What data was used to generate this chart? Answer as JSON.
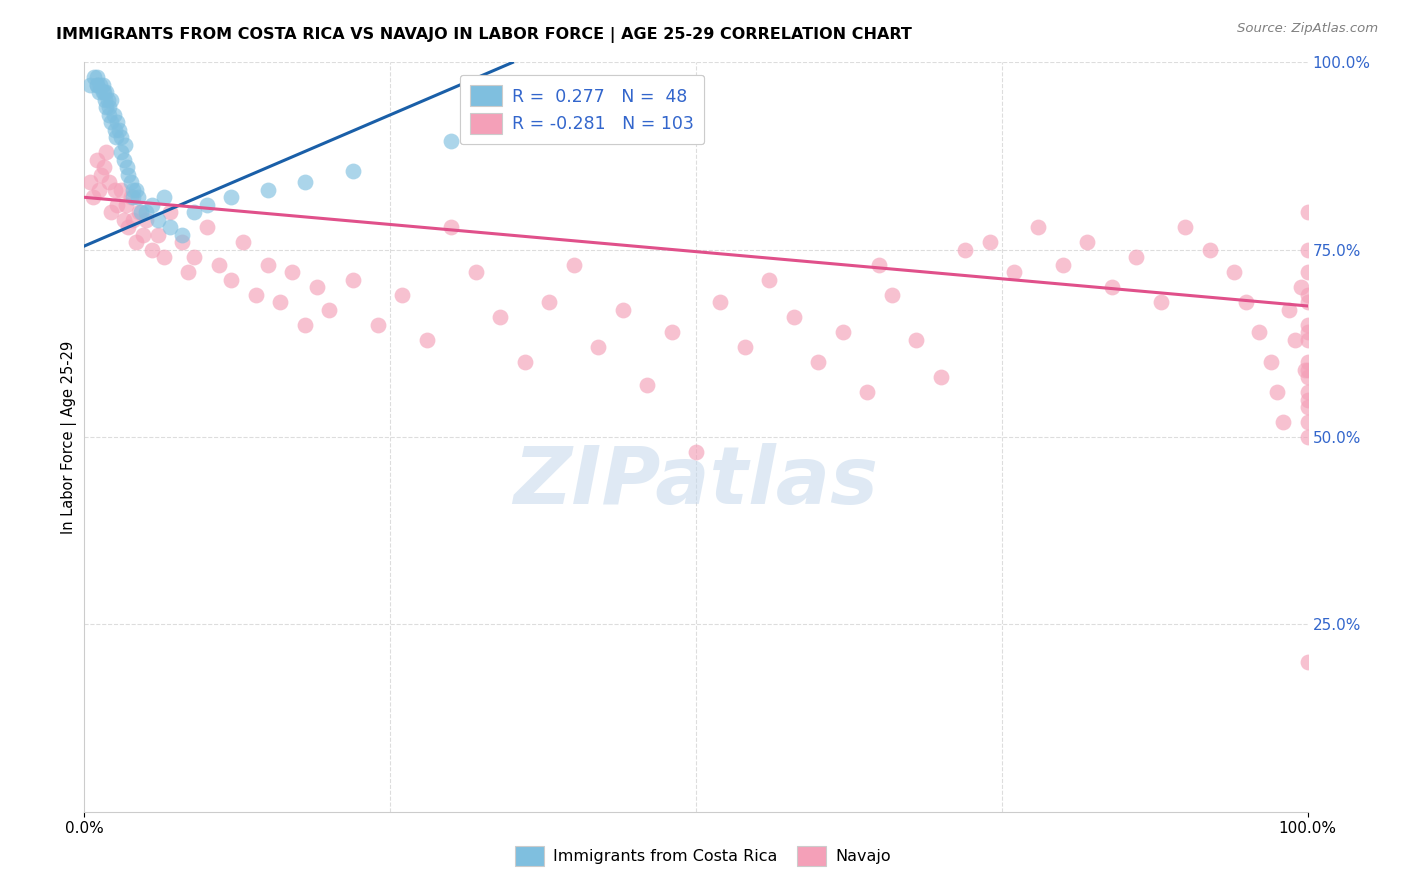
{
  "title": "IMMIGRANTS FROM COSTA RICA VS NAVAJO IN LABOR FORCE | AGE 25-29 CORRELATION CHART",
  "source": "Source: ZipAtlas.com",
  "ylabel": "In Labor Force | Age 25-29",
  "xlim": [
    0,
    1
  ],
  "ylim": [
    0,
    1
  ],
  "x_tick_labels": [
    "0.0%",
    "100.0%"
  ],
  "y_tick_labels_right": [
    "100.0%",
    "75.0%",
    "50.0%",
    "25.0%"
  ],
  "y_tick_vals_right": [
    1.0,
    0.75,
    0.5,
    0.25
  ],
  "legend_r1": "R =  0.277",
  "legend_n1": "N =  48",
  "legend_r2": "R = -0.281",
  "legend_n2": "N = 103",
  "legend_label1": "Immigrants from Costa Rica",
  "legend_label2": "Navajo",
  "color_blue": "#7fbfdf",
  "color_pink": "#f4a0b8",
  "color_line_blue": "#1a5fa8",
  "color_line_pink": "#e0508a",
  "color_right_axis": "#3366cc",
  "watermark_text": "ZIPatlas",
  "blue_scatter_x": [
    0.005,
    0.008,
    0.01,
    0.01,
    0.01,
    0.012,
    0.013,
    0.015,
    0.015,
    0.016,
    0.017,
    0.018,
    0.018,
    0.019,
    0.02,
    0.02,
    0.022,
    0.022,
    0.024,
    0.025,
    0.026,
    0.027,
    0.028,
    0.03,
    0.03,
    0.032,
    0.033,
    0.035,
    0.036,
    0.038,
    0.04,
    0.04,
    0.042,
    0.044,
    0.046,
    0.05,
    0.055,
    0.06,
    0.065,
    0.07,
    0.08,
    0.09,
    0.1,
    0.12,
    0.15,
    0.18,
    0.22,
    0.3
  ],
  "blue_scatter_y": [
    0.97,
    0.98,
    0.97,
    0.98,
    0.97,
    0.96,
    0.97,
    0.97,
    0.96,
    0.96,
    0.95,
    0.94,
    0.96,
    0.95,
    0.93,
    0.94,
    0.92,
    0.95,
    0.93,
    0.91,
    0.9,
    0.92,
    0.91,
    0.88,
    0.9,
    0.87,
    0.89,
    0.86,
    0.85,
    0.84,
    0.83,
    0.82,
    0.83,
    0.82,
    0.8,
    0.8,
    0.81,
    0.79,
    0.82,
    0.78,
    0.77,
    0.8,
    0.81,
    0.82,
    0.83,
    0.84,
    0.855,
    0.895
  ],
  "pink_scatter_x": [
    0.005,
    0.007,
    0.01,
    0.012,
    0.014,
    0.016,
    0.018,
    0.02,
    0.022,
    0.025,
    0.027,
    0.03,
    0.032,
    0.034,
    0.036,
    0.038,
    0.04,
    0.042,
    0.045,
    0.048,
    0.05,
    0.055,
    0.06,
    0.065,
    0.07,
    0.08,
    0.085,
    0.09,
    0.1,
    0.11,
    0.12,
    0.13,
    0.14,
    0.15,
    0.16,
    0.17,
    0.18,
    0.19,
    0.2,
    0.22,
    0.24,
    0.26,
    0.28,
    0.3,
    0.32,
    0.34,
    0.36,
    0.38,
    0.4,
    0.42,
    0.44,
    0.46,
    0.48,
    0.5,
    0.52,
    0.54,
    0.56,
    0.58,
    0.6,
    0.62,
    0.64,
    0.65,
    0.66,
    0.68,
    0.7,
    0.72,
    0.74,
    0.76,
    0.78,
    0.8,
    0.82,
    0.84,
    0.86,
    0.88,
    0.9,
    0.92,
    0.94,
    0.95,
    0.96,
    0.97,
    0.975,
    0.98,
    0.985,
    0.99,
    0.995,
    0.998,
    1.0,
    1.0,
    1.0,
    1.0,
    1.0,
    1.0,
    1.0,
    1.0,
    1.0,
    1.0,
    1.0,
    1.0,
    1.0,
    1.0,
    1.0,
    1.0,
    1.0
  ],
  "pink_scatter_y": [
    0.84,
    0.82,
    0.87,
    0.83,
    0.85,
    0.86,
    0.88,
    0.84,
    0.8,
    0.83,
    0.81,
    0.83,
    0.79,
    0.81,
    0.78,
    0.82,
    0.79,
    0.76,
    0.8,
    0.77,
    0.79,
    0.75,
    0.77,
    0.74,
    0.8,
    0.76,
    0.72,
    0.74,
    0.78,
    0.73,
    0.71,
    0.76,
    0.69,
    0.73,
    0.68,
    0.72,
    0.65,
    0.7,
    0.67,
    0.71,
    0.65,
    0.69,
    0.63,
    0.78,
    0.72,
    0.66,
    0.6,
    0.68,
    0.73,
    0.62,
    0.67,
    0.57,
    0.64,
    0.48,
    0.68,
    0.62,
    0.71,
    0.66,
    0.6,
    0.64,
    0.56,
    0.73,
    0.69,
    0.63,
    0.58,
    0.75,
    0.76,
    0.72,
    0.78,
    0.73,
    0.76,
    0.7,
    0.74,
    0.68,
    0.78,
    0.75,
    0.72,
    0.68,
    0.64,
    0.6,
    0.56,
    0.52,
    0.67,
    0.63,
    0.7,
    0.59,
    0.55,
    0.5,
    0.64,
    0.6,
    0.56,
    0.52,
    0.68,
    0.72,
    0.65,
    0.59,
    0.54,
    0.8,
    0.2,
    0.75,
    0.69,
    0.63,
    0.58
  ],
  "blue_line_x0": 0.0,
  "blue_line_x1": 0.35,
  "blue_line_y0": 0.755,
  "blue_line_y1": 1.0,
  "pink_line_x0": 0.0,
  "pink_line_x1": 1.0,
  "pink_line_y0": 0.82,
  "pink_line_y1": 0.675,
  "grid_color": "#dddddd",
  "bg_color": "#ffffff"
}
